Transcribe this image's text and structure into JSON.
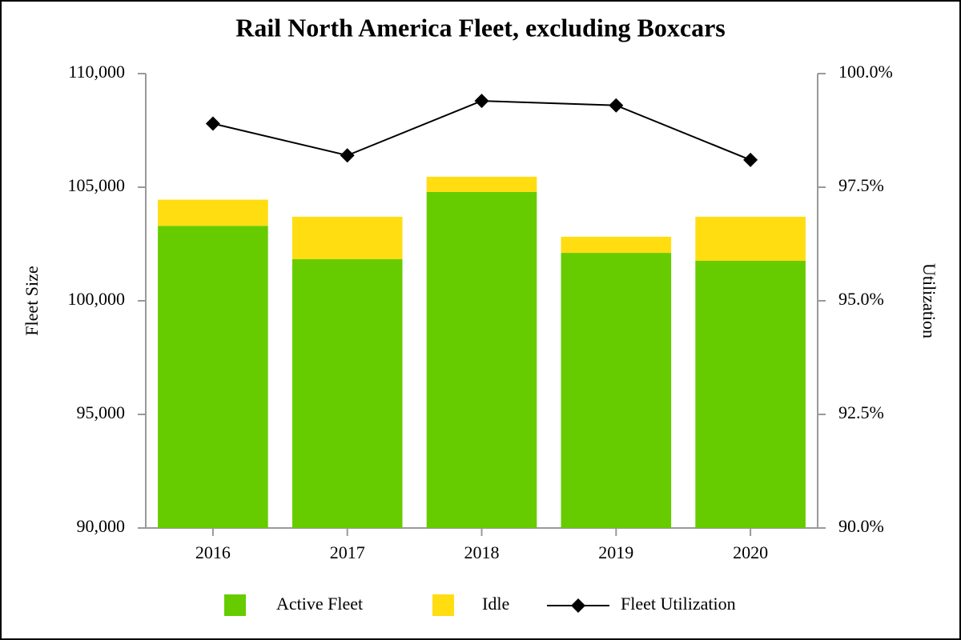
{
  "chart_data": {
    "type": "bar",
    "stacked": true,
    "title": "Rail North America Fleet, excluding Boxcars",
    "ylabel": "Fleet Size",
    "y2label": "Utilization",
    "categories": [
      "2016",
      "2017",
      "2018",
      "2019",
      "2020"
    ],
    "series": [
      {
        "name": "Active Fleet",
        "color": "#66cc00",
        "values": [
          103300,
          101830,
          104790,
          102110,
          101760
        ]
      },
      {
        "name": "Idle",
        "color": "#ffdd11",
        "values": [
          1150,
          1870,
          670,
          710,
          1940
        ]
      },
      {
        "name": "Fleet Utilization",
        "color": "#000000",
        "type": "line",
        "axis": "y2",
        "values": [
          98.9,
          98.2,
          99.4,
          99.3,
          98.1
        ]
      }
    ],
    "ylim": [
      90000,
      110000
    ],
    "yticks": [
      {
        "value": 90000,
        "label": "90,000"
      },
      {
        "value": 95000,
        "label": "95,000"
      },
      {
        "value": 100000,
        "label": "100,000"
      },
      {
        "value": 105000,
        "label": "105,000"
      },
      {
        "value": 110000,
        "label": "110,000"
      }
    ],
    "y2lim": [
      90,
      100
    ],
    "y2ticks": [
      {
        "value": 90,
        "label": "90.0%"
      },
      {
        "value": 92.5,
        "label": "92.5%"
      },
      {
        "value": 95,
        "label": "95.0%"
      },
      {
        "value": 97.5,
        "label": "97.5%"
      },
      {
        "value": 100,
        "label": "100.0%"
      }
    ],
    "legend": "bottom"
  }
}
